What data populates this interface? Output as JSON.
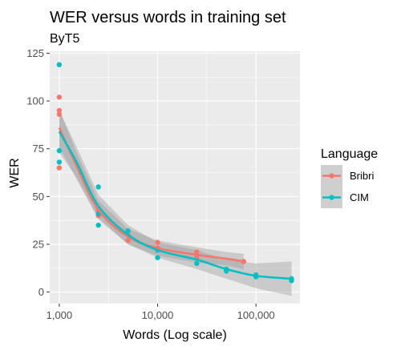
{
  "chart_data": {
    "type": "scatter",
    "title": "WER versus words in training set",
    "subtitle": "ByT5",
    "xlabel": "Words (Log scale)",
    "ylabel": "WER",
    "x_scale": "log10",
    "xlim": [
      800,
      280000
    ],
    "ylim": [
      -6,
      126
    ],
    "x_ticks": [
      1000,
      10000,
      100000
    ],
    "x_tick_labels": [
      "1,000",
      "10,000",
      "100,000"
    ],
    "y_ticks": [
      0,
      25,
      50,
      75,
      100,
      125
    ],
    "y_tick_labels": [
      "0",
      "25",
      "50",
      "75",
      "100",
      "125"
    ],
    "grid": true,
    "legend_position": "right",
    "legend_title": "Language",
    "series": [
      {
        "name": "Bribri",
        "color": "#F8766D",
        "points": [
          [
            1000,
            65
          ],
          [
            1000,
            93
          ],
          [
            1000,
            95
          ],
          [
            1000,
            102
          ],
          [
            2500,
            40
          ],
          [
            2500,
            43
          ],
          [
            5000,
            27
          ],
          [
            5000,
            30
          ],
          [
            10000,
            23
          ],
          [
            10000,
            26
          ],
          [
            25000,
            18
          ],
          [
            25000,
            21
          ],
          [
            75000,
            16
          ]
        ],
        "smooth": [
          [
            1000,
            86
          ],
          [
            1500,
            66
          ],
          [
            2500,
            43
          ],
          [
            5000,
            29
          ],
          [
            10000,
            23
          ],
          [
            25000,
            19.5
          ],
          [
            50000,
            17.5
          ],
          [
            75000,
            16
          ]
        ],
        "band_upper": [
          [
            1000,
            96
          ],
          [
            1500,
            73
          ],
          [
            2500,
            48
          ],
          [
            5000,
            33
          ],
          [
            10000,
            27
          ],
          [
            25000,
            23.5
          ],
          [
            50000,
            21
          ],
          [
            75000,
            20
          ]
        ],
        "band_lower": [
          [
            75000,
            12
          ],
          [
            50000,
            14
          ],
          [
            25000,
            15.5
          ],
          [
            10000,
            19
          ],
          [
            5000,
            25
          ],
          [
            2500,
            38
          ],
          [
            1500,
            59
          ],
          [
            1000,
            76
          ]
        ]
      },
      {
        "name": "CIM",
        "color": "#00BFC4",
        "points": [
          [
            1000,
            68
          ],
          [
            1000,
            74
          ],
          [
            1000,
            119
          ],
          [
            2500,
            35
          ],
          [
            2500,
            41
          ],
          [
            2500,
            55
          ],
          [
            5000,
            32
          ],
          [
            10000,
            18
          ],
          [
            10000,
            22
          ],
          [
            25000,
            15
          ],
          [
            50000,
            11
          ],
          [
            50000,
            12
          ],
          [
            100000,
            8
          ],
          [
            100000,
            9
          ],
          [
            230000,
            6
          ],
          [
            230000,
            7
          ]
        ],
        "smooth": [
          [
            1000,
            84
          ],
          [
            1500,
            68
          ],
          [
            2500,
            45
          ],
          [
            5000,
            30
          ],
          [
            10000,
            22
          ],
          [
            25000,
            17
          ],
          [
            50000,
            12
          ],
          [
            100000,
            8.5
          ],
          [
            230000,
            7
          ]
        ],
        "band_upper": [
          [
            1000,
            95
          ],
          [
            1500,
            76
          ],
          [
            2500,
            51
          ],
          [
            5000,
            35
          ],
          [
            10000,
            26
          ],
          [
            25000,
            22
          ],
          [
            50000,
            17
          ],
          [
            100000,
            15
          ],
          [
            230000,
            16
          ]
        ],
        "band_lower": [
          [
            230000,
            -2
          ],
          [
            100000,
            2
          ],
          [
            50000,
            7
          ],
          [
            25000,
            12
          ],
          [
            10000,
            18
          ],
          [
            5000,
            25
          ],
          [
            2500,
            39
          ],
          [
            1500,
            60
          ],
          [
            1000,
            73
          ]
        ]
      }
    ]
  },
  "colors": {
    "panel": "#EBEBEB",
    "grid_major": "#FFFFFF",
    "band": "#999999",
    "tick": "#333333"
  }
}
